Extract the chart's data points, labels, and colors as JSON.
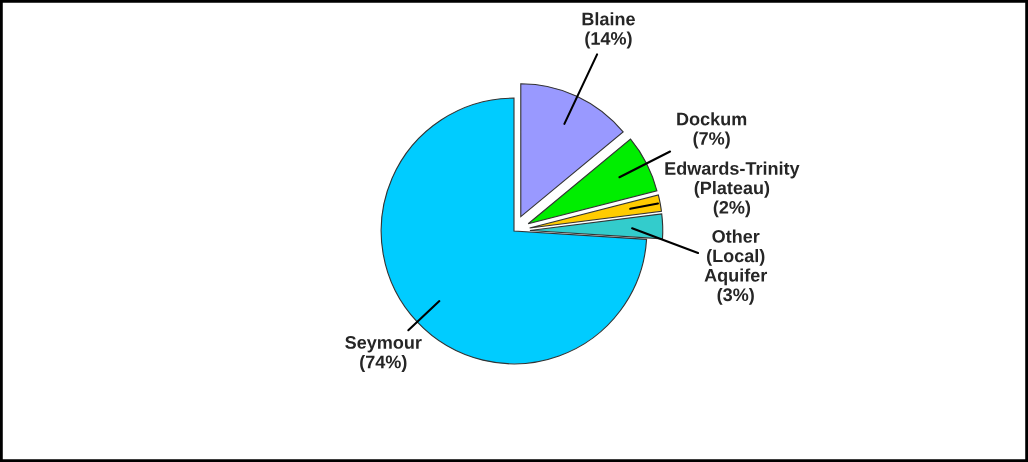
{
  "chart_data": {
    "type": "pie",
    "categories": [
      "Blaine",
      "Dockum",
      "Edwards-Trinity\n(Plateau)",
      "Other\n(Local)\nAquifer",
      "Seymour"
    ],
    "values": [
      14,
      7,
      2,
      3,
      74
    ],
    "value_labels": [
      "(14%)",
      "(7%)",
      "(2%)",
      "(3%)",
      "(74%)"
    ],
    "colors": [
      "#9999ff",
      "#00ee00",
      "#ffcc00",
      "#33cccc",
      "#00ccff"
    ]
  }
}
